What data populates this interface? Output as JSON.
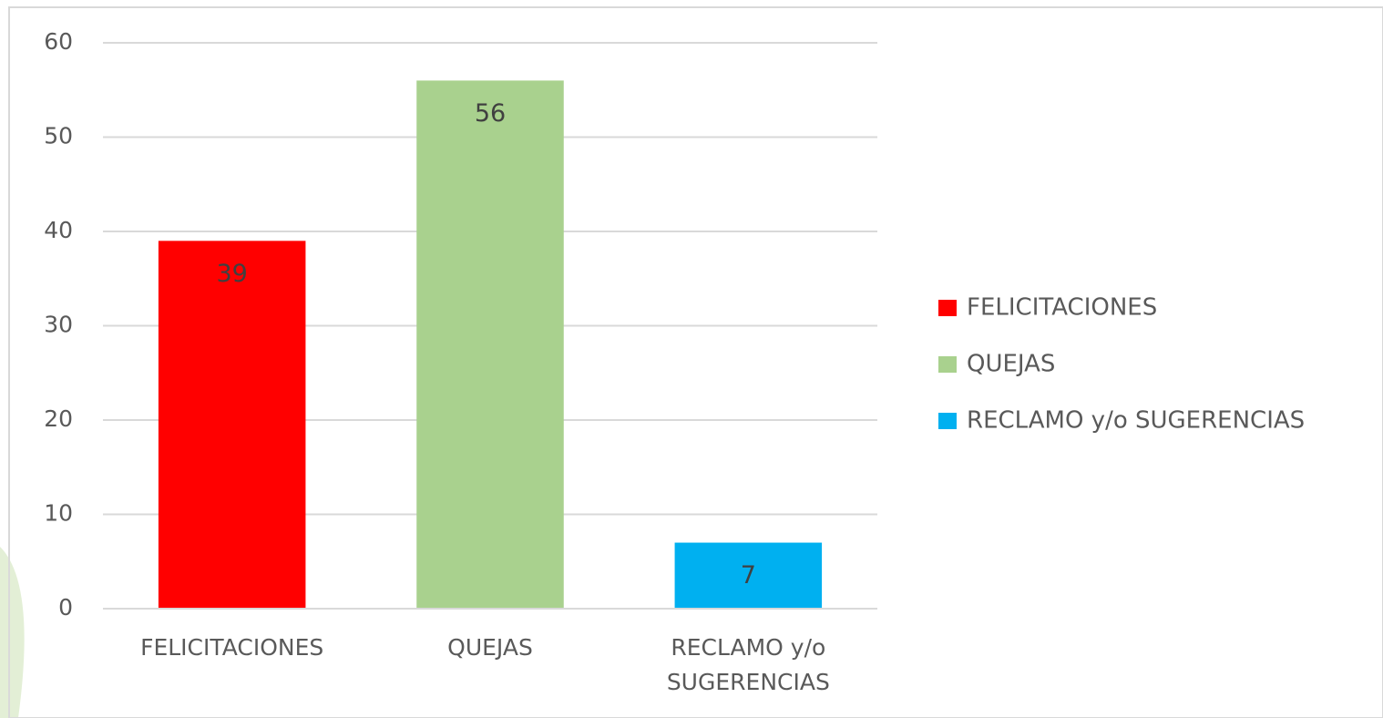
{
  "chart_data": {
    "type": "bar",
    "categories": [
      "FELICITACIONES",
      "QUEJAS",
      "RECLAMO y/o SUGERENCIAS"
    ],
    "values": [
      39,
      56,
      7
    ],
    "colors": [
      "#ff0000",
      "#a9d18e",
      "#00b0f0"
    ],
    "ylim": [
      0,
      60
    ],
    "yticks": [
      0,
      10,
      20,
      30,
      40,
      50,
      60
    ],
    "grid": true,
    "legend": "right"
  }
}
